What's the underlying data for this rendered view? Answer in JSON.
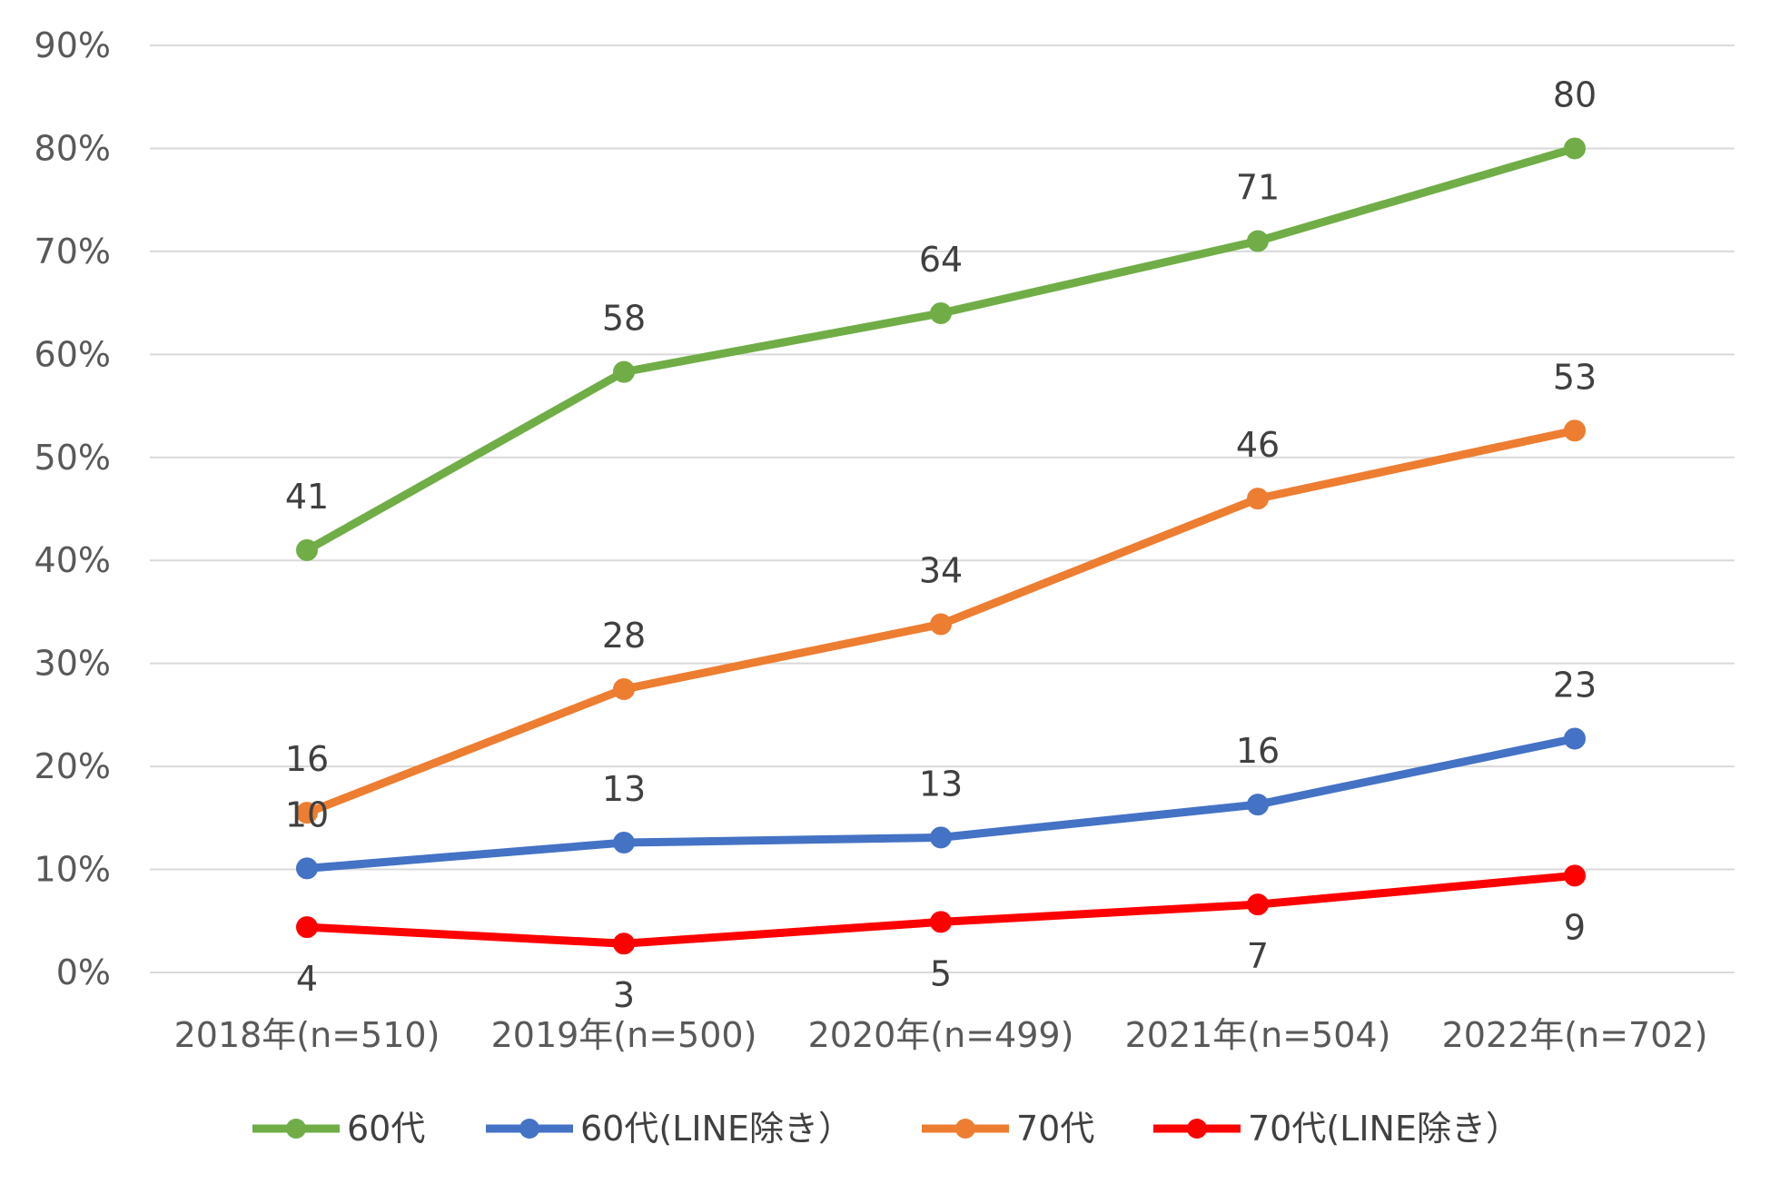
{
  "chart_data": {
    "type": "line",
    "categories": [
      "2018年(n=510)",
      "2019年(n=500)",
      "2020年(n=499)",
      "2021年(n=504)",
      "2022年(n=702)"
    ],
    "ylim": [
      0,
      90
    ],
    "yticks": [
      0,
      10,
      20,
      30,
      40,
      50,
      60,
      70,
      80,
      90
    ],
    "ytick_labels": [
      "0%",
      "10%",
      "20%",
      "30%",
      "40%",
      "50%",
      "60%",
      "70%",
      "80%",
      "90%"
    ],
    "grid": true,
    "legend_position": "bottom",
    "series": [
      {
        "name": "60代",
        "color": "#70ad47",
        "values": [
          41,
          58.3,
          64,
          71,
          80
        ],
        "labels": [
          "41",
          "58",
          "64",
          "71",
          "80"
        ],
        "label_position": "above"
      },
      {
        "name": "60代(LINE除き）",
        "color": "#4472c4",
        "values": [
          10.1,
          12.6,
          13.1,
          16.3,
          22.7
        ],
        "labels": [
          "10",
          "13",
          "13",
          "16",
          "23"
        ],
        "label_position": "above"
      },
      {
        "name": "70代",
        "color": "#ed7d31",
        "values": [
          15.5,
          27.5,
          33.8,
          46,
          52.6
        ],
        "labels": [
          "16",
          "28",
          "34",
          "46",
          "53"
        ],
        "label_position": "above"
      },
      {
        "name": "70代(LINE除き）",
        "color": "#ff0000",
        "values": [
          4.4,
          2.8,
          4.9,
          6.6,
          9.4
        ],
        "labels": [
          "4",
          "3",
          "5",
          "7",
          "9"
        ],
        "label_position": "below"
      }
    ]
  }
}
